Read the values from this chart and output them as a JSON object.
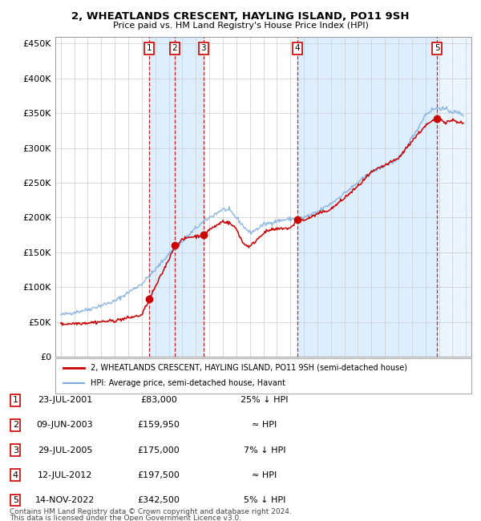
{
  "title1": "2, WHEATLANDS CRESCENT, HAYLING ISLAND, PO11 9SH",
  "title2": "Price paid vs. HM Land Registry's House Price Index (HPI)",
  "ylim": [
    0,
    460000
  ],
  "yticks": [
    0,
    50000,
    100000,
    150000,
    200000,
    250000,
    300000,
    350000,
    400000,
    450000
  ],
  "ytick_labels": [
    "£0",
    "£50K",
    "£100K",
    "£150K",
    "£200K",
    "£250K",
    "£300K",
    "£350K",
    "£400K",
    "£450K"
  ],
  "xlim_start": 1994.6,
  "xlim_end": 2025.4,
  "sale_dates": [
    2001.554,
    2003.438,
    2005.571,
    2012.532,
    2022.869
  ],
  "sale_prices": [
    83000,
    159950,
    175000,
    197500,
    342500
  ],
  "sale_labels": [
    "1",
    "2",
    "3",
    "4",
    "5"
  ],
  "sale_info": [
    {
      "num": "1",
      "date": "23-JUL-2001",
      "price": "£83,000",
      "rel": "25% ↓ HPI"
    },
    {
      "num": "2",
      "date": "09-JUN-2003",
      "price": "£159,950",
      "rel": "≈ HPI"
    },
    {
      "num": "3",
      "date": "29-JUL-2005",
      "price": "£175,000",
      "rel": "7% ↓ HPI"
    },
    {
      "num": "4",
      "date": "12-JUL-2012",
      "price": "£197,500",
      "rel": "≈ HPI"
    },
    {
      "num": "5",
      "date": "14-NOV-2022",
      "price": "£342,500",
      "rel": "5% ↓ HPI"
    }
  ],
  "line_color_property": "#cc0000",
  "line_color_hpi": "#7aabdc",
  "dot_color": "#cc0000",
  "dashed_line_color": "#cc0000",
  "shade_color": "#ddeeff",
  "legend_label_property": "2, WHEATLANDS CRESCENT, HAYLING ISLAND, PO11 9SH (semi-detached house)",
  "legend_label_hpi": "HPI: Average price, semi-detached house, Havant",
  "footer1": "Contains HM Land Registry data © Crown copyright and database right 2024.",
  "footer2": "This data is licensed under the Open Government Licence v3.0.",
  "background_color": "#ffffff",
  "grid_color": "#cccccc"
}
